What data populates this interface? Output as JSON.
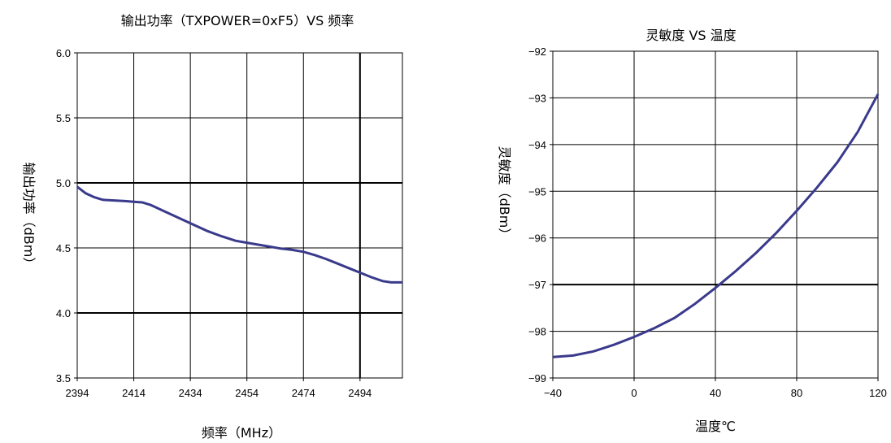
{
  "chart_data": [
    {
      "type": "line",
      "title": "输出功率（TXPOWER=0xF5）VS 频率",
      "xlabel": "频率（MHz）",
      "ylabel": "输出功率（dBm）",
      "xlim": [
        2394,
        2509
      ],
      "ylim": [
        3.5,
        6.0
      ],
      "x_ticks": [
        "2394",
        "2414",
        "2434",
        "2454",
        "2474",
        "2494"
      ],
      "y_ticks": [
        "6.0",
        "5.5",
        "5.0",
        "4.5",
        "4.0",
        "3.5"
      ],
      "grid": true,
      "line_color": "#3a3a8c",
      "series": [
        {
          "x": [
            2394,
            2397,
            2400,
            2403,
            2407,
            2411,
            2414,
            2417,
            2420,
            2425,
            2430,
            2435,
            2440,
            2445,
            2450,
            2454,
            2458,
            2462,
            2466,
            2470,
            2474,
            2478,
            2482,
            2486,
            2490,
            2494,
            2498,
            2502,
            2505,
            2509
          ],
          "y": [
            4.97,
            4.92,
            4.89,
            4.87,
            4.865,
            4.86,
            4.855,
            4.85,
            4.83,
            4.78,
            4.73,
            4.68,
            4.63,
            4.59,
            4.555,
            4.54,
            4.525,
            4.51,
            4.495,
            4.485,
            4.47,
            4.445,
            4.415,
            4.38,
            4.345,
            4.31,
            4.275,
            4.245,
            4.235,
            4.235
          ]
        }
      ]
    },
    {
      "type": "line",
      "title": "灵敏度 VS 温度",
      "xlabel": "温度℃",
      "ylabel": "灵敏度（dBm）",
      "xlim": [
        -40,
        120
      ],
      "ylim": [
        -99,
        -92
      ],
      "x_ticks": [
        "−40",
        "0",
        "40",
        "80",
        "120"
      ],
      "y_ticks": [
        "−92",
        "−93",
        "−94",
        "−95",
        "−96",
        "−97",
        "−98",
        "−99"
      ],
      "grid": true,
      "line_color": "#3a3a8c",
      "series": [
        {
          "x": [
            -40,
            -30,
            -20,
            -10,
            0,
            10,
            20,
            30,
            40,
            50,
            60,
            70,
            80,
            90,
            100,
            110,
            120
          ],
          "y": [
            -98.55,
            -98.52,
            -98.43,
            -98.29,
            -98.12,
            -97.93,
            -97.71,
            -97.41,
            -97.07,
            -96.71,
            -96.32,
            -95.89,
            -95.42,
            -94.92,
            -94.38,
            -93.73,
            -92.92
          ]
        }
      ]
    }
  ]
}
